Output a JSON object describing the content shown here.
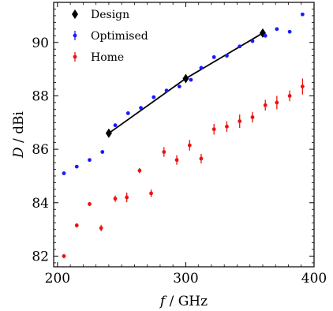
{
  "chart_data": {
    "type": "scatter",
    "xlabel_var": "f",
    "xlabel_unit": " / GHz",
    "ylabel_var": "D",
    "ylabel_unit": " / dBi",
    "xlim": [
      197,
      400
    ],
    "ylim": [
      81.6,
      91.5
    ],
    "xticks": [
      200,
      300,
      400
    ],
    "yticks": [
      82,
      84,
      86,
      88,
      90
    ],
    "legend": {
      "position": "top-left"
    },
    "colors": {
      "design": "#000000",
      "optimised": "#1a1aff",
      "home": "#ee1111"
    },
    "series": [
      {
        "name": "Design",
        "marker": "diamond",
        "line": true,
        "x": [
          240,
          300,
          360
        ],
        "y": [
          86.6,
          88.65,
          90.35
        ]
      },
      {
        "name": "Optimised",
        "marker": "dot",
        "x": [
          205,
          215,
          225,
          235,
          245,
          255,
          265,
          275,
          285,
          295,
          304,
          312,
          322,
          332,
          342,
          352,
          362,
          371,
          381,
          391
        ],
        "y": [
          85.1,
          85.35,
          85.6,
          85.9,
          86.9,
          87.35,
          87.55,
          87.95,
          88.2,
          88.35,
          88.6,
          89.05,
          89.45,
          89.5,
          89.85,
          90.05,
          90.25,
          90.5,
          90.4,
          91.05
        ],
        "err": [
          0.04,
          0.04,
          0.04,
          0.04,
          0.04,
          0.04,
          0.04,
          0.04,
          0.04,
          0.04,
          0.04,
          0.04,
          0.04,
          0.04,
          0.04,
          0.04,
          0.04,
          0.04,
          0.04,
          0.04
        ]
      },
      {
        "name": "Home",
        "marker": "dot",
        "x": [
          205,
          215,
          225,
          234,
          245,
          254,
          264,
          273,
          283,
          293,
          303,
          312,
          322,
          332,
          342,
          352,
          362,
          371,
          381,
          391
        ],
        "y": [
          82.0,
          83.15,
          83.95,
          83.05,
          84.15,
          84.2,
          85.2,
          84.35,
          85.9,
          85.6,
          86.15,
          85.65,
          86.75,
          86.85,
          87.05,
          87.2,
          87.65,
          87.75,
          88.0,
          88.35
        ],
        "err": [
          0.08,
          0.08,
          0.08,
          0.12,
          0.12,
          0.18,
          0.1,
          0.14,
          0.18,
          0.18,
          0.2,
          0.18,
          0.2,
          0.2,
          0.25,
          0.2,
          0.2,
          0.25,
          0.2,
          0.3
        ]
      }
    ]
  }
}
